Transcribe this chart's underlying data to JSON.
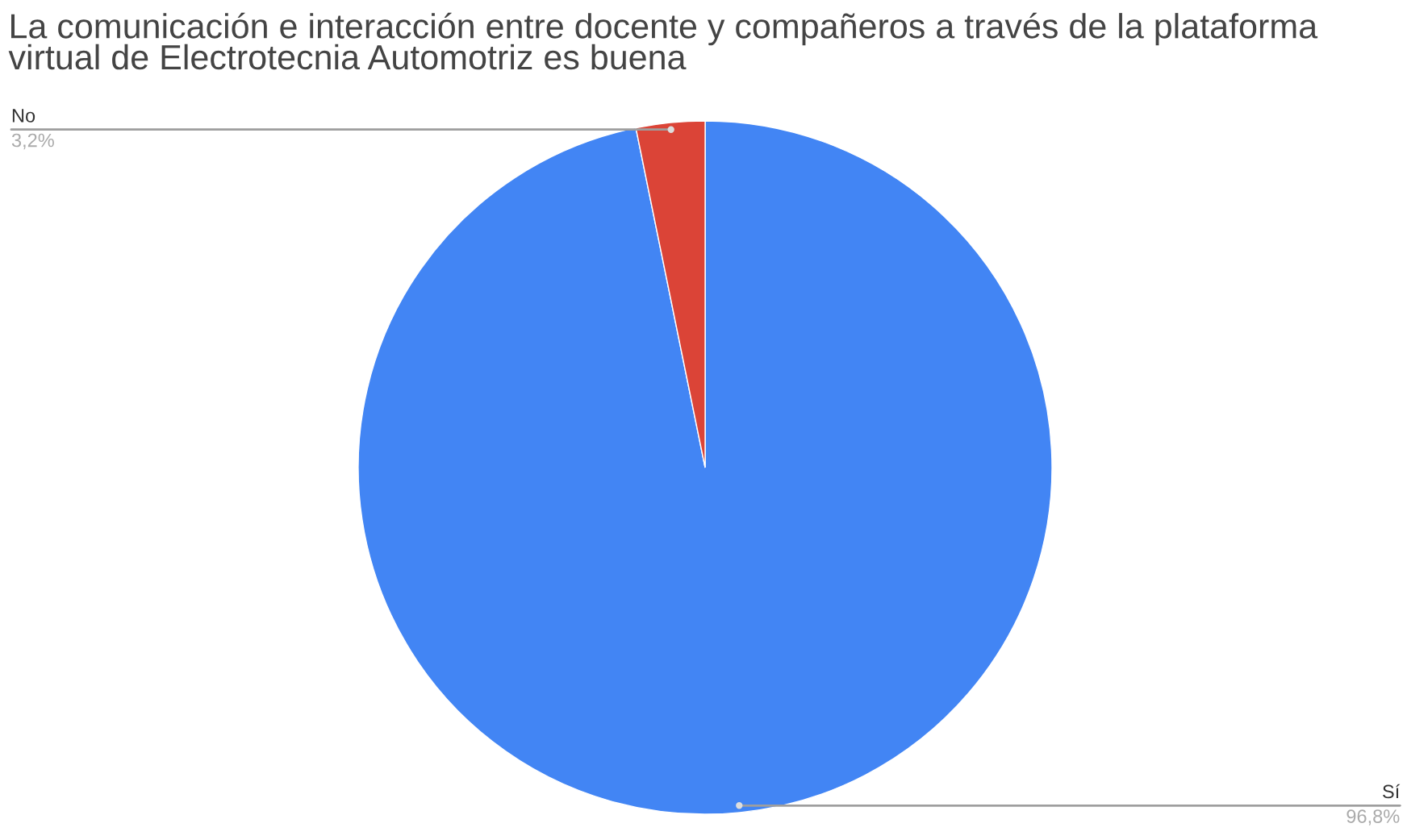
{
  "chart_data": {
    "type": "pie",
    "title": "La comunicación e interacción entre docente y compañeros a través de la plataforma virtual de Electrotecnia Automotriz es buena",
    "categories": [
      "Sí",
      "No"
    ],
    "values": [
      96.8,
      3.2
    ],
    "colors": [
      "#4285f4",
      "#db4437"
    ],
    "value_labels": [
      "96,8%",
      "3,2%"
    ],
    "legend": false
  }
}
